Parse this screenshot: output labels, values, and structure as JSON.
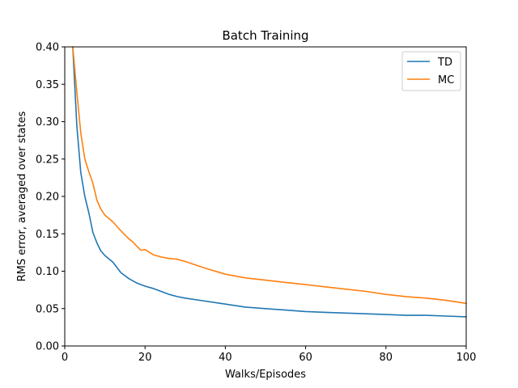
{
  "chart_data": {
    "type": "line",
    "title": "Batch Training",
    "xlabel": "Walks/Episodes",
    "ylabel": "RMS error, averaged over states",
    "xlim": [
      0,
      100
    ],
    "ylim": [
      0,
      0.4
    ],
    "xticks": [
      "0",
      "20",
      "40",
      "60",
      "80",
      "100"
    ],
    "yticks": [
      "0.00",
      "0.05",
      "0.10",
      "0.15",
      "0.20",
      "0.25",
      "0.30",
      "0.35",
      "0.40"
    ],
    "grid": false,
    "legend_position": "top-right",
    "series": [
      {
        "name": "TD",
        "color": "#1f77b4",
        "x": [
          2,
          3,
          4,
          5,
          6,
          7,
          8,
          9,
          10,
          12,
          14,
          16,
          18,
          20,
          22,
          24,
          26,
          28,
          30,
          35,
          40,
          45,
          50,
          55,
          60,
          65,
          70,
          75,
          80,
          85,
          90,
          95,
          100
        ],
        "y": [
          0.4,
          0.295,
          0.232,
          0.2,
          0.178,
          0.152,
          0.138,
          0.127,
          0.121,
          0.112,
          0.098,
          0.09,
          0.084,
          0.08,
          0.077,
          0.073,
          0.069,
          0.066,
          0.064,
          0.06,
          0.056,
          0.052,
          0.05,
          0.048,
          0.046,
          0.045,
          0.044,
          0.043,
          0.042,
          0.041,
          0.041,
          0.04,
          0.039
        ]
      },
      {
        "name": "MC",
        "color": "#ff7f0e",
        "x": [
          2,
          3,
          4,
          5,
          6,
          7,
          8,
          9,
          10,
          12,
          14,
          16,
          17,
          18,
          19,
          20,
          22,
          24,
          26,
          28,
          30,
          35,
          40,
          45,
          50,
          55,
          60,
          65,
          70,
          75,
          80,
          85,
          90,
          95,
          100
        ],
        "y": [
          0.4,
          0.34,
          0.285,
          0.25,
          0.233,
          0.218,
          0.195,
          0.183,
          0.175,
          0.166,
          0.154,
          0.143,
          0.139,
          0.133,
          0.128,
          0.129,
          0.122,
          0.119,
          0.117,
          0.116,
          0.113,
          0.104,
          0.096,
          0.091,
          0.088,
          0.085,
          0.082,
          0.079,
          0.076,
          0.073,
          0.069,
          0.066,
          0.064,
          0.061,
          0.057
        ]
      }
    ]
  }
}
